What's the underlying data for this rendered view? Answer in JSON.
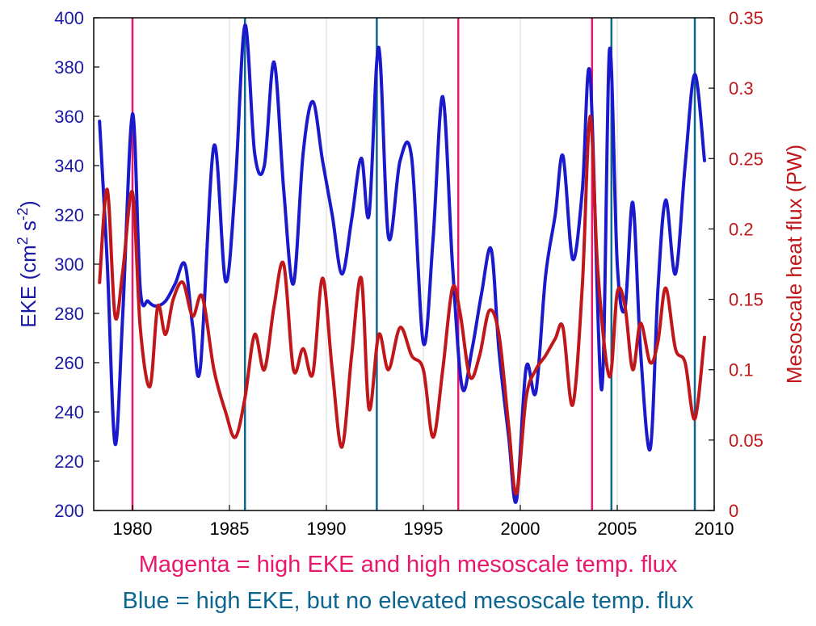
{
  "chart_data": {
    "type": "line",
    "xlim": [
      1978,
      2010
    ],
    "x_ticks": [
      1980,
      1985,
      1990,
      1995,
      2000,
      2005,
      2010
    ],
    "x_tick_labels": [
      "1980",
      "1985",
      "1990",
      "1995",
      "2000",
      "2005",
      "2010"
    ],
    "left_axis": {
      "label": "EKE (cm",
      "label_sup1": "2",
      "label_mid": " s",
      "label_sup2": "-2",
      "label_end": ")",
      "ylim": [
        200,
        400
      ],
      "ticks": [
        200,
        220,
        240,
        260,
        280,
        300,
        320,
        340,
        360,
        380,
        400
      ],
      "tick_labels": [
        "200",
        "220",
        "240",
        "260",
        "280",
        "300",
        "320",
        "340",
        "360",
        "380",
        "400"
      ],
      "color": "#1a1acc"
    },
    "right_axis": {
      "label": "Mesoscale heat flux (PW)",
      "ylim": [
        0,
        0.35
      ],
      "ticks": [
        0,
        0.05,
        0.1,
        0.15,
        0.2,
        0.25,
        0.3,
        0.35
      ],
      "tick_labels": [
        "0",
        "0.05",
        "0.1",
        "0.15",
        "0.2",
        "0.25",
        "0.3",
        "0.35"
      ],
      "color": "#c0171b"
    },
    "series": [
      {
        "name": "EKE",
        "axis": "left",
        "color": "#1a1acc",
        "x": [
          1978.3,
          1978.7,
          1979.1,
          1979.5,
          1980.0,
          1980.4,
          1980.8,
          1981.2,
          1981.7,
          1982.2,
          1982.7,
          1983.1,
          1983.5,
          1984.2,
          1984.8,
          1985.3,
          1985.8,
          1986.3,
          1986.8,
          1987.3,
          1987.8,
          1988.3,
          1988.8,
          1989.3,
          1989.8,
          1990.3,
          1990.8,
          1991.3,
          1991.8,
          1992.2,
          1992.7,
          1993.2,
          1993.8,
          1994.4,
          1995.0,
          1995.5,
          1996.0,
          1996.5,
          1997.0,
          1997.5,
          1998.0,
          1998.5,
          1998.9,
          1999.4,
          1999.8,
          2000.3,
          2000.8,
          2001.3,
          2001.8,
          2002.2,
          2002.7,
          2003.2,
          2003.6,
          2004.2,
          2004.6,
          2005.0,
          2005.4,
          2005.8,
          2006.2,
          2006.7,
          2007.1,
          2007.5,
          2008.0,
          2008.5,
          2009.0,
          2009.5
        ],
        "values": [
          358,
          300,
          227,
          280,
          361,
          290,
          285,
          283,
          285,
          292,
          300,
          275,
          258,
          348,
          293,
          332,
          397,
          345,
          340,
          382,
          330,
          292,
          345,
          366,
          342,
          320,
          296,
          318,
          343,
          320,
          388,
          311,
          342,
          343,
          268,
          310,
          368,
          300,
          250,
          265,
          288,
          306,
          265,
          230,
          204,
          258,
          248,
          295,
          320,
          344,
          302,
          330,
          377,
          249,
          387,
          300,
          282,
          325,
          265,
          225,
          290,
          326,
          296,
          340,
          377,
          342
        ]
      },
      {
        "name": "Mesoscale heat flux",
        "axis": "right",
        "color": "#c0171b",
        "x": [
          1978.3,
          1978.7,
          1979.1,
          1979.5,
          1980.0,
          1980.4,
          1980.9,
          1981.3,
          1981.7,
          1982.1,
          1982.6,
          1983.1,
          1983.6,
          1984.2,
          1984.8,
          1985.3,
          1985.8,
          1986.3,
          1986.8,
          1987.3,
          1987.8,
          1988.3,
          1988.8,
          1989.3,
          1989.8,
          1990.3,
          1990.8,
          1991.3,
          1991.8,
          1992.2,
          1992.7,
          1993.2,
          1993.8,
          1994.4,
          1995.0,
          1995.5,
          1996.0,
          1996.5,
          1996.9,
          1997.4,
          1997.9,
          1998.4,
          1998.9,
          1999.4,
          1999.8,
          2000.3,
          2000.8,
          2001.3,
          2001.8,
          2002.2,
          2002.7,
          2003.2,
          2003.6,
          2004.0,
          2004.6,
          2005.0,
          2005.4,
          2005.8,
          2006.2,
          2006.7,
          2007.1,
          2007.5,
          2008.0,
          2008.5,
          2009.0,
          2009.5
        ],
        "values": [
          0.162,
          0.228,
          0.138,
          0.17,
          0.226,
          0.13,
          0.088,
          0.145,
          0.125,
          0.15,
          0.162,
          0.138,
          0.152,
          0.1,
          0.07,
          0.052,
          0.08,
          0.125,
          0.1,
          0.145,
          0.175,
          0.1,
          0.115,
          0.097,
          0.165,
          0.1,
          0.045,
          0.11,
          0.165,
          0.072,
          0.125,
          0.1,
          0.13,
          0.11,
          0.1,
          0.052,
          0.1,
          0.158,
          0.14,
          0.095,
          0.11,
          0.142,
          0.125,
          0.06,
          0.012,
          0.08,
          0.1,
          0.11,
          0.122,
          0.13,
          0.075,
          0.16,
          0.28,
          0.17,
          0.095,
          0.155,
          0.145,
          0.1,
          0.133,
          0.105,
          0.12,
          0.158,
          0.115,
          0.105,
          0.065,
          0.123
        ]
      }
    ],
    "event_lines": [
      {
        "x": 1980.0,
        "type": "magenta",
        "color": "#e8186d"
      },
      {
        "x": 1996.8,
        "type": "magenta",
        "color": "#e8186d"
      },
      {
        "x": 2003.7,
        "type": "magenta",
        "color": "#e8186d"
      },
      {
        "x": 1985.8,
        "type": "blue",
        "color": "#0d6690"
      },
      {
        "x": 1992.6,
        "type": "blue",
        "color": "#0d6690"
      },
      {
        "x": 2004.7,
        "type": "blue",
        "color": "#0d6690"
      },
      {
        "x": 2009.0,
        "type": "blue",
        "color": "#0d6690"
      }
    ],
    "grid": "vertical"
  },
  "captions": {
    "magenta": "Magenta = high EKE and high mesoscale temp. flux",
    "blue": "Blue = high EKE, but no elevated mesoscale temp. flux"
  },
  "colors": {
    "magenta": "#e8186d",
    "blue_caption": "#0d6690"
  }
}
